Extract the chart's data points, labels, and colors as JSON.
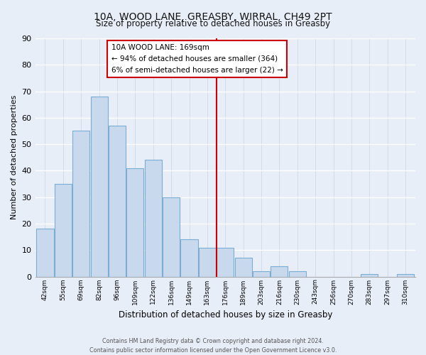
{
  "title": "10A, WOOD LANE, GREASBY, WIRRAL, CH49 2PT",
  "subtitle": "Size of property relative to detached houses in Greasby",
  "xlabel": "Distribution of detached houses by size in Greasby",
  "ylabel": "Number of detached properties",
  "bar_labels": [
    "42sqm",
    "55sqm",
    "69sqm",
    "82sqm",
    "96sqm",
    "109sqm",
    "122sqm",
    "136sqm",
    "149sqm",
    "163sqm",
    "176sqm",
    "189sqm",
    "203sqm",
    "216sqm",
    "230sqm",
    "243sqm",
    "256sqm",
    "270sqm",
    "283sqm",
    "297sqm",
    "310sqm"
  ],
  "bar_values": [
    18,
    35,
    55,
    68,
    57,
    41,
    44,
    30,
    14,
    11,
    11,
    7,
    2,
    4,
    2,
    0,
    0,
    0,
    1,
    0,
    1
  ],
  "bar_color": "#c8d9ee",
  "bar_edge_color": "#7aadd4",
  "vline_x": 9.5,
  "vline_color": "#cc0000",
  "ylim": [
    0,
    90
  ],
  "yticks": [
    0,
    10,
    20,
    30,
    40,
    50,
    60,
    70,
    80,
    90
  ],
  "annotation_title": "10A WOOD LANE: 169sqm",
  "annotation_line1": "← 94% of detached houses are smaller (364)",
  "annotation_line2": "6% of semi-detached houses are larger (22) →",
  "footer_line1": "Contains HM Land Registry data © Crown copyright and database right 2024.",
  "footer_line2": "Contains public sector information licensed under the Open Government Licence v3.0.",
  "bg_color": "#e8eef8",
  "grid_color": "#c8d4e8"
}
